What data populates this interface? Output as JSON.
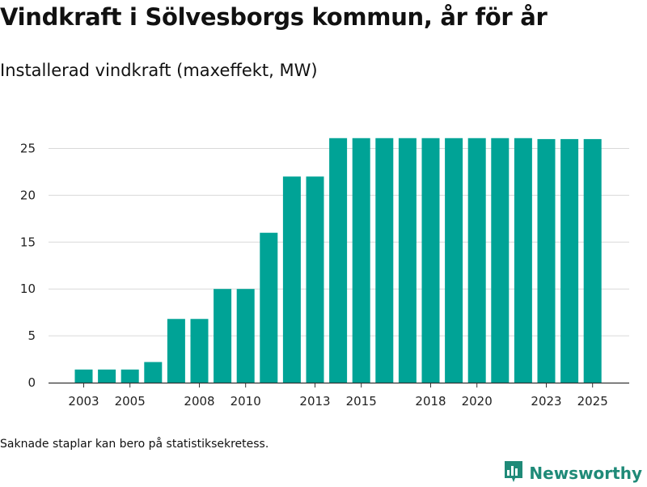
{
  "title": "Vindkraft i Sölvesborgs kommun, år för år",
  "subtitle": "Installerad vindkraft (maxeffekt, MW)",
  "footnote": "Saknade staplar kan bero på statistiksekretess.",
  "brand": {
    "name": "Newsworthy",
    "icon": "bar-chart-logo-icon",
    "color": "#1f8a78"
  },
  "colors": {
    "bar": "#00a396",
    "grid": "#d9d9d9",
    "axis": "#333333"
  },
  "chart_data": {
    "type": "bar",
    "title": "",
    "xlabel": "",
    "ylabel": "",
    "categories": [
      "2003",
      "2004",
      "2005",
      "2006",
      "2007",
      "2008",
      "2009",
      "2010",
      "2011",
      "2012",
      "2013",
      "2014",
      "2015",
      "2016",
      "2017",
      "2018",
      "2019",
      "2020",
      "2021",
      "2022",
      "2023",
      "2024",
      "2025"
    ],
    "values": [
      1.4,
      1.4,
      1.4,
      2.2,
      6.8,
      6.8,
      10.0,
      10.0,
      16.0,
      22.0,
      22.0,
      26.1,
      26.1,
      26.1,
      26.1,
      26.1,
      26.1,
      26.1,
      26.1,
      26.1,
      26.0,
      26.0,
      26.0
    ],
    "x_tick_labels": [
      "2003",
      "2005",
      "2008",
      "2010",
      "2013",
      "2015",
      "2018",
      "2020",
      "2023",
      "2025"
    ],
    "y_ticks": [
      0,
      5,
      10,
      15,
      20,
      25
    ],
    "ylim": [
      0,
      27
    ],
    "grid": true,
    "legend": "none"
  }
}
